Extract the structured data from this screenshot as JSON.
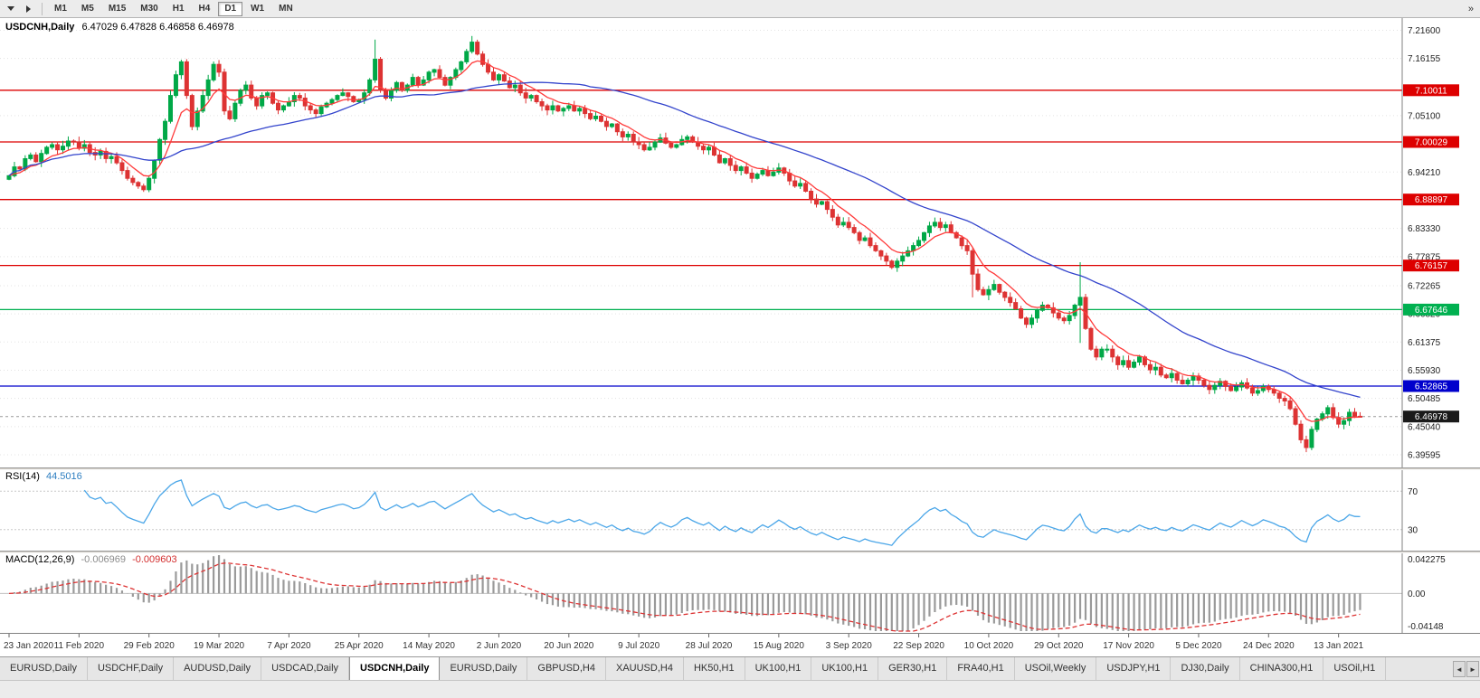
{
  "toolbar": {
    "timeframes": [
      "M1",
      "M5",
      "M15",
      "M30",
      "H1",
      "H4",
      "D1",
      "W1",
      "MN"
    ],
    "active_timeframe": "D1",
    "overflow_glyph": "»"
  },
  "chart": {
    "title": "USDCNH,Daily",
    "ohlc": "6.47029 6.47828 6.46858 6.46978"
  },
  "chart_data": {
    "type": "candlestick",
    "symbol": "USDCNH",
    "timeframe": "Daily",
    "ohlc_current": {
      "open": "6.47029",
      "high": "6.47828",
      "low": "6.46858",
      "close": "6.46978"
    },
    "price_range": {
      "top": 7.236,
      "bottom": 6.375
    },
    "grid_labels": [
      "7.21600",
      "7.16155",
      "7.05100",
      "6.94210",
      "6.83330",
      "6.77875",
      "6.72265",
      "6.66820",
      "6.61375",
      "6.55930",
      "6.50485",
      "6.45040",
      "6.39595"
    ],
    "hlines": [
      {
        "value": 7.10011,
        "label": "7.10011",
        "color": "#dd0000"
      },
      {
        "value": 7.00029,
        "label": "7.00029",
        "color": "#dd0000"
      },
      {
        "value": 6.88897,
        "label": "6.88897",
        "color": "#dd0000"
      },
      {
        "value": 6.76157,
        "label": "6.76157",
        "color": "#dd0000"
      },
      {
        "value": 6.67646,
        "label": "6.67646",
        "color": "#00b050"
      },
      {
        "value": 6.52865,
        "label": "6.52865",
        "color": "#0000cc"
      }
    ],
    "current_price": {
      "value": 6.46978,
      "label": "6.46978",
      "line_color": "#9a9a9a",
      "badge_color": "#1a1a1a"
    },
    "x_labels": [
      "23 Jan 2020",
      "11 Feb 2020",
      "29 Feb 2020",
      "19 Mar 2020",
      "7 Apr 2020",
      "25 Apr 2020",
      "14 May 2020",
      "2 Jun 2020",
      "20 Jun 2020",
      "9 Jul 2020",
      "28 Jul 2020",
      "15 Aug 2020",
      "3 Sep 2020",
      "22 Sep 2020",
      "10 Oct 2020",
      "29 Oct 2020",
      "17 Nov 2020",
      "5 Dec 2020",
      "24 Dec 2020",
      "13 Jan 2021"
    ],
    "first_open": 6.928,
    "closes": [
      6.935,
      6.952,
      6.948,
      6.968,
      6.975,
      6.962,
      6.978,
      6.99,
      6.995,
      6.985,
      6.992,
      7.002,
      7.0,
      6.988,
      6.995,
      6.98,
      6.975,
      6.982,
      6.968,
      6.972,
      6.96,
      6.945,
      6.93,
      6.922,
      6.915,
      6.908,
      6.93,
      6.965,
      7.005,
      7.04,
      7.09,
      7.13,
      7.155,
      7.09,
      7.03,
      7.06,
      7.09,
      7.12,
      7.15,
      7.135,
      7.06,
      7.045,
      7.075,
      7.1,
      7.11,
      7.085,
      7.07,
      7.09,
      7.095,
      7.075,
      7.062,
      7.07,
      7.078,
      7.09,
      7.085,
      7.07,
      7.062,
      7.055,
      7.068,
      7.075,
      7.082,
      7.09,
      7.095,
      7.088,
      7.078,
      7.082,
      7.095,
      7.12,
      7.16,
      7.1,
      7.085,
      7.1,
      7.115,
      7.1,
      7.11,
      7.125,
      7.11,
      7.12,
      7.135,
      7.14,
      7.125,
      7.11,
      7.125,
      7.14,
      7.155,
      7.175,
      7.193,
      7.17,
      7.15,
      7.135,
      7.12,
      7.13,
      7.118,
      7.105,
      7.11,
      7.095,
      7.085,
      7.09,
      7.078,
      7.07,
      7.062,
      7.07,
      7.06,
      7.065,
      7.07,
      7.06,
      7.065,
      7.055,
      7.045,
      7.05,
      7.04,
      7.03,
      7.035,
      7.02,
      7.01,
      7.015,
      7.0,
      6.995,
      6.985,
      6.99,
      7.0,
      7.008,
      6.998,
      6.99,
      6.995,
      7.005,
      7.01,
      7.0,
      6.992,
      6.985,
      6.99,
      6.975,
      6.96,
      6.968,
      6.955,
      6.945,
      6.952,
      6.94,
      6.93,
      6.938,
      6.945,
      6.935,
      6.942,
      6.95,
      6.94,
      6.925,
      6.915,
      6.92,
      6.905,
      6.89,
      6.88,
      6.885,
      6.87,
      6.855,
      6.84,
      6.845,
      6.835,
      6.825,
      6.81,
      6.815,
      6.8,
      6.79,
      6.78,
      6.77,
      6.758,
      6.77,
      6.78,
      6.79,
      6.8,
      6.81,
      6.825,
      6.838,
      6.845,
      6.835,
      6.84,
      6.825,
      6.815,
      6.8,
      6.79,
      6.745,
      6.715,
      6.705,
      6.715,
      6.725,
      6.71,
      6.7,
      6.69,
      6.678,
      6.66,
      6.648,
      6.66,
      6.675,
      6.685,
      6.68,
      6.67,
      6.66,
      6.655,
      6.665,
      6.685,
      6.7,
      6.64,
      6.6,
      6.585,
      6.6,
      6.6,
      6.585,
      6.57,
      6.578,
      6.565,
      6.575,
      6.585,
      6.57,
      6.56,
      6.565,
      6.55,
      6.545,
      6.553,
      6.54,
      6.533,
      6.54,
      6.548,
      6.54,
      6.53,
      6.522,
      6.53,
      6.538,
      6.528,
      6.52,
      6.527,
      6.535,
      6.525,
      6.515,
      6.52,
      6.528,
      6.522,
      6.515,
      6.505,
      6.5,
      6.485,
      6.455,
      6.425,
      6.41,
      6.445,
      6.465,
      6.475,
      6.487,
      6.468,
      6.455,
      6.462,
      6.478,
      6.4703,
      6.46978
    ],
    "wick_overrides": {
      "68": {
        "h": 7.198
      },
      "86": {
        "h": 7.205
      },
      "179": {
        "l": 6.7
      },
      "199": {
        "h": 6.768,
        "l": 6.612
      },
      "241": {
        "l": 6.401
      },
      "251": {
        "h": 6.47828,
        "l": 6.46858
      }
    },
    "ma_fast_period": 8,
    "ma_slow_period": 40,
    "colors": {
      "bull": "#00a847",
      "bear": "#dd3333",
      "ma_fast": "#ff3a3a",
      "ma_slow": "#3344cc",
      "grid": "#e3e3e3"
    },
    "rsi": {
      "label": "RSI(14)",
      "value": "44.5016",
      "period": 14,
      "levels": [
        "70",
        "30"
      ],
      "color": "#4aa6e8"
    },
    "macd": {
      "label": "MACD(12,26,9)",
      "value": "-0.006969",
      "signal_value": "-0.009603",
      "fast": 12,
      "slow": 26,
      "signal_period": 9,
      "scale_top": "0.042275",
      "scale_zero": "0.00",
      "scale_bottom": "-0.04148",
      "hist_color": "#9a9a9a",
      "signal_color": "#dd3333"
    }
  },
  "tabs": {
    "items": [
      "EURUSD,Daily",
      "USDCHF,Daily",
      "AUDUSD,Daily",
      "USDCAD,Daily",
      "USDCNH,Daily",
      "EURUSD,Daily",
      "GBPUSD,H4",
      "XAUUSD,H4",
      "HK50,H1",
      "UK100,H1",
      "UK100,H1",
      "GER30,H1",
      "FRA40,H1",
      "USOil,Weekly",
      "USDJPY,H1",
      "DJ30,Daily",
      "CHINA300,H1",
      "USOil,H1"
    ],
    "active_index": 4,
    "nav_left": "◄",
    "nav_right": "►"
  }
}
